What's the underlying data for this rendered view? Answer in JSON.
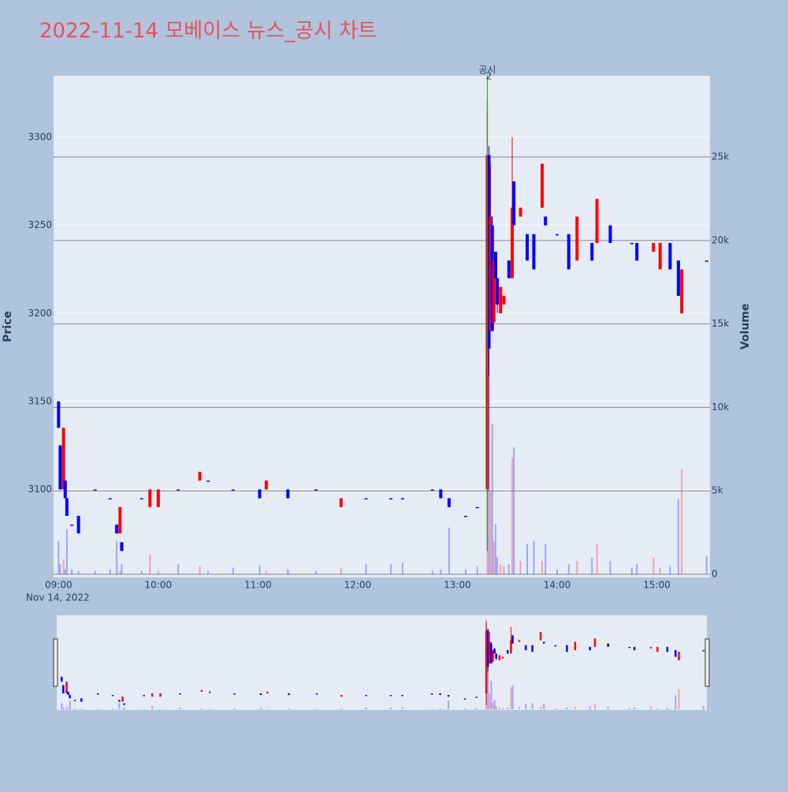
{
  "chart_data": {
    "type": "candlestick",
    "title": "2022-11-14 모베이스 뉴스_공시 차트",
    "y_label": "Price",
    "y2_label": "Volume",
    "annotation": {
      "text": "공시",
      "label": "2",
      "x": "2022-11-14 13:18"
    },
    "x": [
      "2022-11-14 09:00",
      "2022-11-14 09:01",
      "2022-11-14 09:03",
      "2022-11-14 09:04",
      "2022-11-14 09:05",
      "2022-11-14 09:08",
      "2022-11-14 09:12",
      "2022-11-14 09:22",
      "2022-11-14 09:31",
      "2022-11-14 09:35",
      "2022-11-14 09:37",
      "2022-11-14 09:38",
      "2022-11-14 09:50",
      "2022-11-14 09:55",
      "2022-11-14 10:00",
      "2022-11-14 10:12",
      "2022-11-14 10:25",
      "2022-11-14 10:30",
      "2022-11-14 10:45",
      "2022-11-14 11:01",
      "2022-11-14 11:05",
      "2022-11-14 11:18",
      "2022-11-14 11:35",
      "2022-11-14 11:50",
      "2022-11-14 12:05",
      "2022-11-14 12:20",
      "2022-11-14 12:27",
      "2022-11-14 12:45",
      "2022-11-14 12:50",
      "2022-11-14 12:55",
      "2022-11-14 13:05",
      "2022-11-14 13:12",
      "2022-11-14 13:18",
      "2022-11-14 13:19",
      "2022-11-14 13:20",
      "2022-11-14 13:21",
      "2022-11-14 13:22",
      "2022-11-14 13:23",
      "2022-11-14 13:24",
      "2022-11-14 13:26",
      "2022-11-14 13:28",
      "2022-11-14 13:31",
      "2022-11-14 13:33",
      "2022-11-14 13:34",
      "2022-11-14 13:38",
      "2022-11-14 13:42",
      "2022-11-14 13:46",
      "2022-11-14 13:51",
      "2022-11-14 13:53",
      "2022-11-14 14:00",
      "2022-11-14 14:07",
      "2022-11-14 14:12",
      "2022-11-14 14:21",
      "2022-11-14 14:24",
      "2022-11-14 14:32",
      "2022-11-14 14:45",
      "2022-11-14 14:48",
      "2022-11-14 14:58",
      "2022-11-14 15:02",
      "2022-11-14 15:08",
      "2022-11-14 15:13",
      "2022-11-14 15:15",
      "2022-11-14 15:30"
    ],
    "open": [
      3150,
      3125,
      3100,
      3105,
      3095,
      3080,
      3085,
      3100,
      3095,
      3080,
      3075,
      3070,
      3095,
      3090,
      3090,
      3100,
      3105,
      3105,
      3100,
      3100,
      3100,
      3100,
      3100,
      3090,
      3095,
      3095,
      3095,
      3100,
      3100,
      3095,
      3085,
      3090,
      3100,
      3290,
      3190,
      3250,
      3195,
      3235,
      3220,
      3200,
      3205,
      3230,
      3220,
      3275,
      3255,
      3245,
      3245,
      3260,
      3255,
      3245,
      3245,
      3230,
      3240,
      3240,
      3250,
      3240,
      3240,
      3235,
      3225,
      3240,
      3230,
      3200,
      3230
    ],
    "high": [
      3150,
      3125,
      3135,
      3105,
      3095,
      3080,
      3085,
      3100,
      3095,
      3080,
      3090,
      3070,
      3095,
      3100,
      3100,
      3100,
      3110,
      3105,
      3100,
      3100,
      3105,
      3100,
      3100,
      3095,
      3095,
      3095,
      3095,
      3100,
      3100,
      3095,
      3085,
      3090,
      3315,
      3295,
      3285,
      3255,
      3230,
      3235,
      3220,
      3215,
      3210,
      3230,
      3300,
      3275,
      3260,
      3245,
      3245,
      3285,
      3255,
      3245,
      3245,
      3255,
      3240,
      3265,
      3250,
      3240,
      3240,
      3240,
      3240,
      3240,
      3230,
      3225,
      3230
    ],
    "low": [
      3135,
      3100,
      3100,
      3095,
      3085,
      3080,
      3075,
      3100,
      3095,
      3075,
      3075,
      3065,
      3095,
      3090,
      3090,
      3100,
      3105,
      3105,
      3100,
      3095,
      3100,
      3095,
      3100,
      3090,
      3095,
      3095,
      3095,
      3100,
      3095,
      3090,
      3085,
      3090,
      3065,
      3165,
      3190,
      3190,
      3195,
      3220,
      3200,
      3200,
      3205,
      3220,
      3220,
      3250,
      3255,
      3230,
      3225,
      3260,
      3250,
      3245,
      3225,
      3230,
      3230,
      3240,
      3240,
      3240,
      3230,
      3235,
      3225,
      3225,
      3210,
      3200,
      3230
    ],
    "close": [
      3135,
      3100,
      3135,
      3095,
      3085,
      3080,
      3075,
      3100,
      3095,
      3075,
      3090,
      3065,
      3095,
      3100,
      3100,
      3100,
      3110,
      3105,
      3100,
      3095,
      3105,
      3095,
      3100,
      3095,
      3095,
      3095,
      3095,
      3100,
      3095,
      3090,
      3085,
      3090,
      3290,
      3180,
      3255,
      3190,
      3230,
      3220,
      3205,
      3215,
      3210,
      3220,
      3260,
      3250,
      3260,
      3230,
      3225,
      3285,
      3250,
      3245,
      3225,
      3255,
      3230,
      3265,
      3240,
      3240,
      3230,
      3240,
      3240,
      3225,
      3210,
      3225,
      3230
    ],
    "volume": [
      2000,
      600,
      900,
      300,
      2700,
      300,
      200,
      200,
      300,
      2000,
      200,
      600,
      200,
      1200,
      200,
      600,
      500,
      200,
      400,
      500,
      200,
      300,
      200,
      400,
      600,
      600,
      700,
      200,
      300,
      2800,
      300,
      500,
      28500,
      12000,
      5000,
      9000,
      2000,
      3000,
      1000,
      600,
      500,
      600,
      7000,
      7600,
      800,
      1800,
      2000,
      800,
      1800,
      300,
      600,
      800,
      1000,
      1800,
      800,
      400,
      600,
      1000,
      400,
      500,
      4500,
      6300,
      1100
    ],
    "increasing_color": "#ff0000",
    "decreasing_color": "#0000ff",
    "ylim": [
      3050,
      3335
    ],
    "yticks": [
      3100,
      3150,
      3200,
      3250,
      3300
    ],
    "y2lim": [
      -190,
      29870
    ],
    "y2ticks": [
      0,
      {
        "value": 5000,
        "label": "5k"
      },
      {
        "value": 10000,
        "label": "10k"
      },
      {
        "value": 15000,
        "label": "15k"
      },
      {
        "value": 20000,
        "label": "20k"
      },
      {
        "value": 25000,
        "label": "25k"
      }
    ],
    "xlim": [
      "2022-11-14 08:57",
      "2022-11-14 15:32"
    ],
    "xticks": [
      {
        "value": "2022-11-14 09:00",
        "label": "09:00"
      },
      {
        "value": "2022-11-14 10:00",
        "label": "10:00"
      },
      {
        "value": "2022-11-14 11:00",
        "label": "11:00"
      },
      {
        "value": "2022-11-14 12:00",
        "label": "12:00"
      },
      {
        "value": "2022-11-14 13:00",
        "label": "13:00"
      },
      {
        "value": "2022-11-14 14:00",
        "label": "14:00"
      },
      {
        "value": "2022-11-14 15:00",
        "label": "15:00"
      }
    ],
    "x_sublabel": "Nov 14, 2022"
  }
}
